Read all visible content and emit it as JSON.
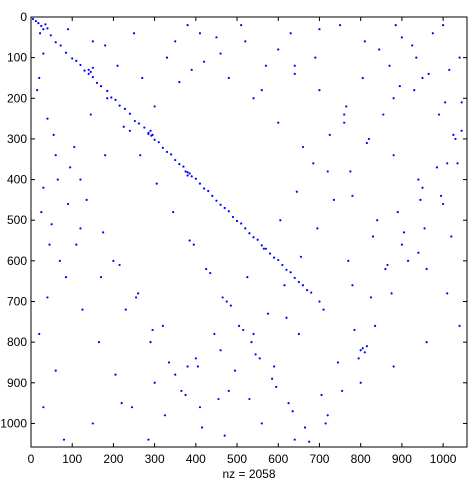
{
  "chart_data": {
    "type": "scatter",
    "title": "",
    "xlabel_prefix": "nz = ",
    "nz": "2058",
    "xlabel": "nz = 2058",
    "ylabel": "",
    "xlim": [
      0,
      1058
    ],
    "ylim": [
      0,
      1058
    ],
    "y_inverted": true,
    "grid": false,
    "x_ticks": [
      0,
      100,
      200,
      300,
      400,
      500,
      600,
      700,
      800,
      900,
      1000
    ],
    "y_ticks": [
      0,
      100,
      200,
      300,
      400,
      500,
      600,
      700,
      800,
      900,
      1000
    ],
    "x_tick_labels": [
      "0",
      "100",
      "200",
      "300",
      "400",
      "500",
      "600",
      "700",
      "800",
      "900",
      "1000"
    ],
    "y_tick_labels": [
      "0",
      "100",
      "200",
      "300",
      "400",
      "500",
      "600",
      "700",
      "800",
      "900",
      "1000"
    ],
    "marker_color": "#0000ff",
    "series": [
      {
        "values_description_free": true,
        "points": [
          [
            5,
            5
          ],
          [
            12,
            10
          ],
          [
            18,
            15
          ],
          [
            25,
            22
          ],
          [
            30,
            30
          ],
          [
            35,
            18
          ],
          [
            40,
            28
          ],
          [
            22,
            40
          ],
          [
            48,
            45
          ],
          [
            60,
            62
          ],
          [
            72,
            70
          ],
          [
            85,
            88
          ],
          [
            100,
            102
          ],
          [
            110,
            108
          ],
          [
            120,
            118
          ],
          [
            130,
            132
          ],
          [
            140,
            140
          ],
          [
            150,
            148
          ],
          [
            160,
            162
          ],
          [
            170,
            170
          ],
          [
            185,
            182
          ],
          [
            195,
            198
          ],
          [
            205,
            204
          ],
          [
            215,
            218
          ],
          [
            228,
            226
          ],
          [
            240,
            238
          ],
          [
            252,
            256
          ],
          [
            262,
            262
          ],
          [
            275,
            272
          ],
          [
            285,
            288
          ],
          [
            292,
            292
          ],
          [
            300,
            302
          ],
          [
            310,
            308
          ],
          [
            320,
            322
          ],
          [
            330,
            332
          ],
          [
            340,
            338
          ],
          [
            350,
            352
          ],
          [
            360,
            362
          ],
          [
            370,
            368
          ],
          [
            380,
            382
          ],
          [
            390,
            392
          ],
          [
            400,
            398
          ],
          [
            410,
            410
          ],
          [
            420,
            422
          ],
          [
            430,
            428
          ],
          [
            440,
            440
          ],
          [
            450,
            452
          ],
          [
            460,
            462
          ],
          [
            470,
            470
          ],
          [
            480,
            478
          ],
          [
            490,
            492
          ],
          [
            500,
            502
          ],
          [
            510,
            508
          ],
          [
            520,
            520
          ],
          [
            530,
            532
          ],
          [
            540,
            542
          ],
          [
            550,
            548
          ],
          [
            560,
            562
          ],
          [
            570,
            570
          ],
          [
            580,
            582
          ],
          [
            590,
            592
          ],
          [
            600,
            598
          ],
          [
            610,
            610
          ],
          [
            620,
            622
          ],
          [
            630,
            628
          ],
          [
            640,
            642
          ],
          [
            650,
            652
          ],
          [
            660,
            660
          ],
          [
            670,
            672
          ],
          [
            680,
            678
          ],
          [
            140,
            130
          ],
          [
            145,
            135
          ],
          [
            150,
            125
          ],
          [
            285,
            285
          ],
          [
            290,
            280
          ],
          [
            295,
            290
          ],
          [
            375,
            380
          ],
          [
            380,
            390
          ],
          [
            385,
            385
          ],
          [
            800,
            820
          ],
          [
            805,
            815
          ],
          [
            810,
            825
          ],
          [
            815,
            810
          ],
          [
            380,
            20
          ],
          [
            410,
            40
          ],
          [
            520,
            60
          ],
          [
            600,
            80
          ],
          [
            700,
            30
          ],
          [
            900,
            50
          ],
          [
            1000,
            20
          ],
          [
            1040,
            100
          ],
          [
            950,
            150
          ],
          [
            880,
            200
          ],
          [
            760,
            260
          ],
          [
            640,
            140
          ],
          [
            560,
            180
          ],
          [
            460,
            90
          ],
          [
            350,
            60
          ],
          [
            250,
            40
          ],
          [
            180,
            70
          ],
          [
            20,
            150
          ],
          [
            40,
            250
          ],
          [
            60,
            340
          ],
          [
            30,
            420
          ],
          [
            50,
            510
          ],
          [
            70,
            600
          ],
          [
            40,
            690
          ],
          [
            20,
            780
          ],
          [
            60,
            870
          ],
          [
            30,
            960
          ],
          [
            80,
            1040
          ],
          [
            150,
            1000
          ],
          [
            220,
            950
          ],
          [
            300,
            900
          ],
          [
            380,
            860
          ],
          [
            460,
            820
          ],
          [
            540,
            780
          ],
          [
            620,
            740
          ],
          [
            700,
            700
          ],
          [
            780,
            660
          ],
          [
            860,
            620
          ],
          [
            940,
            580
          ],
          [
            1020,
            540
          ],
          [
            1000,
            460
          ],
          [
            940,
            400
          ],
          [
            880,
            340
          ],
          [
            820,
            300
          ],
          [
            760,
            240
          ],
          [
            700,
            180
          ],
          [
            640,
            120
          ],
          [
            120,
            520
          ],
          [
            200,
            600
          ],
          [
            260,
            680
          ],
          [
            320,
            760
          ],
          [
            400,
            840
          ],
          [
            480,
            920
          ],
          [
            560,
            1000
          ],
          [
            640,
            1040
          ],
          [
            720,
            980
          ],
          [
            800,
            900
          ],
          [
            880,
            860
          ],
          [
            960,
            800
          ],
          [
            1040,
            760
          ],
          [
            1010,
            680
          ],
          [
            960,
            620
          ],
          [
            900,
            560
          ],
          [
            840,
            500
          ],
          [
            780,
            440
          ],
          [
            720,
            380
          ],
          [
            660,
            320
          ],
          [
            600,
            260
          ],
          [
            540,
            200
          ],
          [
            480,
            150
          ],
          [
            420,
            110
          ],
          [
            360,
            160
          ],
          [
            300,
            220
          ],
          [
            240,
            280
          ],
          [
            180,
            340
          ],
          [
            120,
            400
          ],
          [
            90,
            460
          ],
          [
            110,
            560
          ],
          [
            170,
            640
          ],
          [
            230,
            720
          ],
          [
            290,
            800
          ],
          [
            350,
            880
          ],
          [
            410,
            960
          ],
          [
            470,
            1030
          ],
          [
            530,
            940
          ],
          [
            590,
            860
          ],
          [
            650,
            780
          ],
          [
            710,
            720
          ],
          [
            770,
            600
          ],
          [
            830,
            540
          ],
          [
            890,
            480
          ],
          [
            950,
            420
          ],
          [
            1010,
            360
          ],
          [
            1030,
            300
          ],
          [
            990,
            240
          ],
          [
            930,
            180
          ],
          [
            870,
            120
          ],
          [
            810,
            60
          ],
          [
            750,
            20
          ],
          [
            690,
            100
          ],
          [
            630,
            40
          ],
          [
            570,
            120
          ],
          [
            510,
            20
          ],
          [
            450,
            50
          ],
          [
            390,
            130
          ],
          [
            330,
            100
          ],
          [
            270,
            150
          ],
          [
            210,
            120
          ],
          [
            150,
            60
          ],
          [
            90,
            30
          ],
          [
            30,
            90
          ],
          [
            15,
            180
          ],
          [
            55,
            290
          ],
          [
            95,
            370
          ],
          [
            135,
            450
          ],
          [
            175,
            530
          ],
          [
            215,
            610
          ],
          [
            255,
            690
          ],
          [
            295,
            770
          ],
          [
            335,
            850
          ],
          [
            375,
            930
          ],
          [
            415,
            1010
          ],
          [
            455,
            940
          ],
          [
            495,
            870
          ],
          [
            535,
            800
          ],
          [
            575,
            730
          ],
          [
            615,
            660
          ],
          [
            655,
            590
          ],
          [
            695,
            520
          ],
          [
            735,
            450
          ],
          [
            775,
            380
          ],
          [
            815,
            310
          ],
          [
            855,
            240
          ],
          [
            895,
            170
          ],
          [
            935,
            100
          ],
          [
            975,
            40
          ],
          [
            1015,
            130
          ],
          [
            1045,
            210
          ],
          [
            1025,
            290
          ],
          [
            985,
            370
          ],
          [
            945,
            450
          ],
          [
            905,
            530
          ],
          [
            865,
            610
          ],
          [
            825,
            690
          ],
          [
            785,
            770
          ],
          [
            745,
            850
          ],
          [
            705,
            930
          ],
          [
            665,
            1010
          ],
          [
            625,
            950
          ],
          [
            585,
            890
          ],
          [
            545,
            830
          ],
          [
            505,
            760
          ],
          [
            465,
            690
          ],
          [
            425,
            620
          ],
          [
            385,
            550
          ],
          [
            345,
            480
          ],
          [
            305,
            410
          ],
          [
            265,
            340
          ],
          [
            225,
            270
          ],
          [
            185,
            200
          ],
          [
            145,
            240
          ],
          [
            105,
            320
          ],
          [
            65,
            400
          ],
          [
            25,
            480
          ],
          [
            45,
            560
          ],
          [
            85,
            640
          ],
          [
            125,
            720
          ],
          [
            165,
            800
          ],
          [
            205,
            880
          ],
          [
            245,
            960
          ],
          [
            285,
            1040
          ],
          [
            325,
            980
          ],
          [
            365,
            920
          ],
          [
            405,
            860
          ],
          [
            445,
            780
          ],
          [
            485,
            710
          ],
          [
            525,
            640
          ],
          [
            565,
            570
          ],
          [
            605,
            500
          ],
          [
            645,
            430
          ],
          [
            685,
            360
          ],
          [
            725,
            290
          ],
          [
            765,
            220
          ],
          [
            805,
            150
          ],
          [
            845,
            80
          ],
          [
            885,
            20
          ],
          [
            925,
            70
          ],
          [
            965,
            140
          ],
          [
            1005,
            210
          ],
          [
            1045,
            280
          ],
          [
            1035,
            360
          ],
          [
            995,
            440
          ],
          [
            955,
            520
          ],
          [
            915,
            600
          ],
          [
            875,
            680
          ],
          [
            835,
            760
          ],
          [
            795,
            840
          ],
          [
            755,
            920
          ],
          [
            715,
            1000
          ],
          [
            675,
            1045
          ],
          [
            635,
            970
          ],
          [
            595,
            910
          ],
          [
            555,
            840
          ],
          [
            515,
            770
          ],
          [
            475,
            700
          ],
          [
            435,
            630
          ],
          [
            395,
            560
          ]
        ]
      }
    ]
  }
}
